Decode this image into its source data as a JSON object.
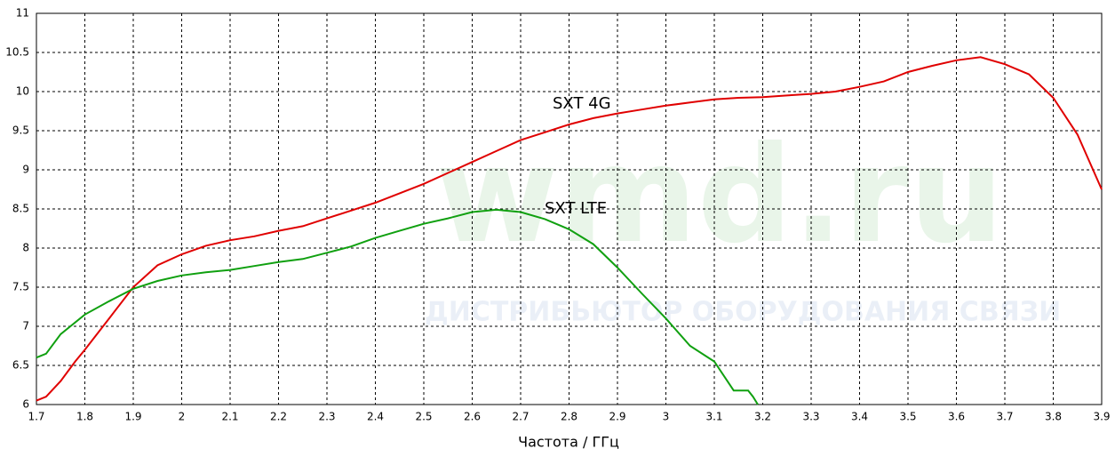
{
  "chart_data": {
    "type": "line",
    "xlabel": "Частота / ГГц",
    "watermark": {
      "logo": "wmd.ru",
      "tagline": "ДИСТРИБЬЮТОР ОБОРУДОВАНИЯ СВЯЗИ"
    },
    "xlim": [
      1.7,
      3.9
    ],
    "xticks": [
      1.7,
      1.8,
      1.9,
      2,
      2.1,
      2.2,
      2.3,
      2.4,
      2.5,
      2.6,
      2.7,
      2.8,
      2.9,
      3,
      3.1,
      3.2,
      3.3,
      3.4,
      3.5,
      3.6,
      3.7,
      3.8,
      3.9
    ],
    "ylim": [
      6,
      11
    ],
    "yticks": [
      6,
      6.5,
      7,
      7.5,
      8,
      8.5,
      9,
      9.5,
      10,
      10.5,
      11
    ],
    "grid": true,
    "series": [
      {
        "name": "SXT 4G",
        "color": "#e00000",
        "x": [
          1.7,
          1.72,
          1.75,
          1.78,
          1.8,
          1.85,
          1.9,
          1.95,
          2.0,
          2.05,
          2.1,
          2.15,
          2.2,
          2.25,
          2.3,
          2.35,
          2.4,
          2.45,
          2.5,
          2.55,
          2.6,
          2.65,
          2.7,
          2.75,
          2.8,
          2.85,
          2.9,
          2.95,
          3.0,
          3.05,
          3.1,
          3.15,
          3.2,
          3.25,
          3.3,
          3.35,
          3.4,
          3.45,
          3.5,
          3.55,
          3.6,
          3.65,
          3.7,
          3.75,
          3.8,
          3.85,
          3.9
        ],
        "values": [
          6.05,
          6.1,
          6.3,
          6.55,
          6.7,
          7.1,
          7.5,
          7.78,
          7.92,
          8.03,
          8.1,
          8.15,
          8.22,
          8.28,
          8.38,
          8.48,
          8.58,
          8.7,
          8.82,
          8.96,
          9.1,
          9.24,
          9.38,
          9.48,
          9.58,
          9.66,
          9.72,
          9.77,
          9.82,
          9.86,
          9.9,
          9.92,
          9.93,
          9.95,
          9.97,
          10.0,
          10.06,
          10.13,
          10.25,
          10.33,
          10.4,
          10.44,
          10.35,
          10.22,
          9.92,
          9.45,
          8.75
        ]
      },
      {
        "name": "SXT LTE",
        "color": "#10a010",
        "x": [
          1.7,
          1.72,
          1.75,
          1.8,
          1.85,
          1.9,
          1.95,
          2.0,
          2.05,
          2.1,
          2.15,
          2.2,
          2.25,
          2.3,
          2.35,
          2.4,
          2.45,
          2.5,
          2.55,
          2.6,
          2.65,
          2.7,
          2.75,
          2.8,
          2.85,
          2.9,
          2.95,
          3.0,
          3.05,
          3.1,
          3.14,
          3.17,
          3.18,
          3.19
        ],
        "values": [
          6.6,
          6.65,
          6.9,
          7.15,
          7.32,
          7.48,
          7.58,
          7.65,
          7.69,
          7.72,
          7.77,
          7.82,
          7.86,
          7.94,
          8.02,
          8.13,
          8.22,
          8.31,
          8.38,
          8.46,
          8.49,
          8.46,
          8.37,
          8.24,
          8.05,
          7.75,
          7.42,
          7.1,
          6.75,
          6.55,
          6.18,
          6.18,
          6.1,
          6.0
        ]
      }
    ]
  }
}
